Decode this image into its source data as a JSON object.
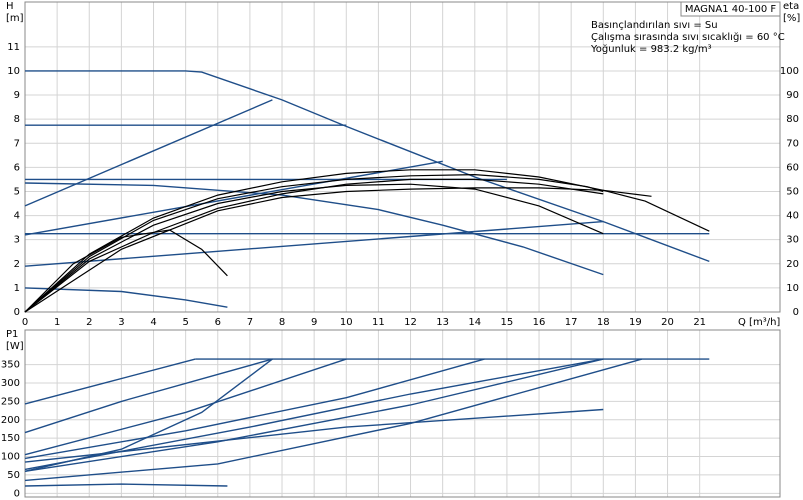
{
  "chart_data": [
    {
      "type": "line",
      "title": "MAGNA1 40-100 F",
      "annotations": [
        "Basınçlandırılan sıvı = Su",
        "Çalışma sırasında sıvı sıcaklığı = 60 °C",
        "Yoğunluk = 983.2 kg/m³"
      ],
      "xlabel": "Q [m³/h]",
      "ylabel": "H",
      "yunit": "[m]",
      "y2label": "eta",
      "y2unit": "[%]",
      "xlim": [
        0,
        23.5
      ],
      "xticks": [
        0,
        1,
        2,
        3,
        4,
        5,
        6,
        7,
        8,
        9,
        10,
        11,
        12,
        13,
        14,
        15,
        16,
        17,
        18,
        19,
        20,
        21
      ],
      "ylim": [
        0,
        12.86
      ],
      "yticks": [
        0,
        1,
        2,
        3,
        4,
        5,
        6,
        7,
        8,
        9,
        10,
        11
      ],
      "y2lim": [
        0,
        128.6
      ],
      "y2ticks": [
        0,
        10,
        20,
        30,
        40,
        50,
        60,
        70,
        80,
        90,
        100
      ],
      "grid": true,
      "series": [
        {
          "color": "#1f4e89",
          "x": [
            0,
            5,
            5.5,
            8,
            10,
            14,
            18,
            21.3
          ],
          "values": [
            10,
            10,
            9.95,
            8.8,
            7.7,
            5.6,
            3.75,
            2.1
          ]
        },
        {
          "color": "#1f4e89",
          "x": [
            0,
            10
          ],
          "values": [
            7.75,
            7.75
          ]
        },
        {
          "color": "#1f4e89",
          "x": [
            0,
            7.7
          ],
          "values": [
            4.4,
            8.8
          ]
        },
        {
          "color": "#1f4e89",
          "x": [
            0,
            15
          ],
          "values": [
            5.5,
            5.5
          ]
        },
        {
          "color": "#1f4e89",
          "x": [
            0,
            21.3
          ],
          "values": [
            3.25,
            3.25
          ]
        },
        {
          "color": "#1f4e89",
          "x": [
            0,
            13
          ],
          "values": [
            3.2,
            6.25
          ]
        },
        {
          "color": "#1f4e89",
          "x": [
            0,
            18
          ],
          "values": [
            1.9,
            3.75
          ]
        },
        {
          "color": "#1f4e89",
          "x": [
            0,
            4,
            8,
            11,
            13,
            15.5,
            18
          ],
          "values": [
            5.35,
            5.25,
            4.85,
            4.25,
            3.6,
            2.7,
            1.55
          ]
        },
        {
          "color": "#1f4e89",
          "x": [
            0,
            3,
            5,
            6.3
          ],
          "values": [
            1,
            0.85,
            0.5,
            0.2
          ]
        },
        {
          "color": "#000000",
          "x": [
            0,
            1.5,
            3,
            4.5,
            5.5,
            6.3
          ],
          "values": [
            0,
            2,
            3.1,
            3.4,
            2.6,
            1.5
          ]
        },
        {
          "color": "#000000",
          "x": [
            0,
            2,
            4,
            6,
            8,
            10,
            12,
            14,
            16,
            18
          ],
          "values": [
            0,
            2.2,
            3.6,
            4.5,
            5,
            5.25,
            5.3,
            5.1,
            4.4,
            3.25
          ]
        },
        {
          "color": "#000000",
          "x": [
            0,
            2,
            4,
            6,
            8,
            10,
            12,
            14,
            16,
            18,
            19.3,
            21.3
          ],
          "values": [
            0,
            2.4,
            3.9,
            4.85,
            5.4,
            5.75,
            5.9,
            5.9,
            5.6,
            5.05,
            4.6,
            3.35
          ]
        },
        {
          "color": "#000000",
          "x": [
            0,
            2,
            4,
            6,
            8,
            10,
            12,
            14,
            16,
            17.5,
            18
          ],
          "values": [
            0,
            2.3,
            3.8,
            4.7,
            5.2,
            5.5,
            5.65,
            5.7,
            5.5,
            5.2,
            5
          ]
        },
        {
          "color": "#000000",
          "x": [
            0,
            3,
            6,
            8,
            10,
            12,
            14,
            16,
            18,
            19.5
          ],
          "values": [
            0,
            2.6,
            4.2,
            4.75,
            5,
            5.1,
            5.15,
            5.15,
            5.05,
            4.8
          ]
        },
        {
          "color": "#000000",
          "x": [
            0,
            2,
            4,
            6,
            8,
            10,
            12,
            14,
            16,
            18
          ],
          "values": [
            0,
            2.1,
            3.3,
            4.3,
            4.9,
            5.3,
            5.5,
            5.5,
            5.3,
            4.9
          ]
        }
      ]
    },
    {
      "type": "line",
      "ylabel": "P1",
      "yunit": "[W]",
      "xlim": [
        0,
        23.5
      ],
      "ylim": [
        -10,
        444
      ],
      "yticks": [
        0,
        50,
        100,
        150,
        200,
        250,
        300,
        350
      ],
      "grid": true,
      "series": [
        {
          "color": "#1f4e89",
          "x": [
            5.3,
            21.3
          ],
          "values": [
            365,
            365
          ]
        },
        {
          "color": "#1f4e89",
          "x": [
            0,
            5.3
          ],
          "values": [
            243,
            365
          ]
        },
        {
          "color": "#1f4e89",
          "x": [
            0,
            3,
            7.7
          ],
          "values": [
            165,
            250,
            365
          ]
        },
        {
          "color": "#1f4e89",
          "x": [
            0,
            5,
            10
          ],
          "values": [
            105,
            220,
            365
          ]
        },
        {
          "color": "#1f4e89",
          "x": [
            0,
            3,
            5.5,
            7.7
          ],
          "values": [
            60,
            120,
            220,
            365
          ]
        },
        {
          "color": "#1f4e89",
          "x": [
            0,
            5,
            10,
            14.3
          ],
          "values": [
            95,
            170,
            260,
            365
          ]
        },
        {
          "color": "#1f4e89",
          "x": [
            0,
            6,
            12,
            18
          ],
          "values": [
            60,
            140,
            240,
            365
          ]
        },
        {
          "color": "#1f4e89",
          "x": [
            0,
            6,
            12,
            19.2
          ],
          "values": [
            35,
            80,
            190,
            365
          ]
        },
        {
          "color": "#1f4e89",
          "x": [
            0,
            10,
            18
          ],
          "values": [
            85,
            180,
            228
          ]
        },
        {
          "color": "#1f4e89",
          "x": [
            0,
            3,
            6.3
          ],
          "values": [
            20,
            25,
            20
          ]
        },
        {
          "color": "#1f4e89",
          "x": [
            0,
            7,
            12,
            18
          ],
          "values": [
            65,
            180,
            270,
            365
          ]
        }
      ]
    }
  ]
}
